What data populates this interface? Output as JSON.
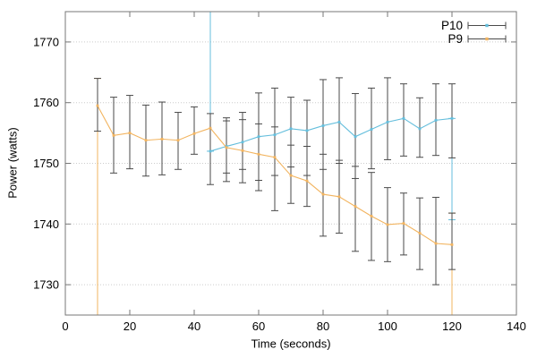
{
  "chart_data": {
    "type": "line",
    "title": "",
    "xlabel": "Time (seconds)",
    "ylabel": "Power (watts)",
    "xlim": [
      0,
      140
    ],
    "ylim": [
      1725,
      1775
    ],
    "xticks": [
      0,
      20,
      40,
      60,
      80,
      100,
      120,
      140
    ],
    "yticks": [
      1730,
      1740,
      1750,
      1760,
      1770
    ],
    "grid": "horizontal dotted gridlines at y ticks",
    "legend_position": "top-right inside, no box",
    "colors": {
      "p10": "#64bedc",
      "p9": "#f2b45f",
      "error_bar": "#4a4a4a",
      "axis": "#777777",
      "grid": "#cccccc",
      "text": "#000000"
    },
    "series": [
      {
        "name": "P10",
        "color_key": "p10",
        "x": [
          45,
          50,
          55,
          60,
          65,
          70,
          75,
          80,
          85,
          90,
          95,
          100,
          105,
          110,
          115,
          120
        ],
        "y": [
          1752.0,
          1752.8,
          1753.5,
          1754.4,
          1754.7,
          1755.7,
          1755.4,
          1756.2,
          1756.8,
          1754.4,
          1755.6,
          1756.8,
          1757.4,
          1755.7,
          1757.1,
          1757.4
        ],
        "err_lo": [
          null,
          1748.4,
          1749.0,
          1747.2,
          1748.0,
          1749.4,
          1748.0,
          1749.0,
          1750.0,
          1747.5,
          1749.1,
          1750.6,
          1751.2,
          1751.0,
          1751.3,
          1750.9
        ],
        "err_hi": [
          null,
          1757.5,
          1758.4,
          1761.6,
          1762.4,
          1760.9,
          1760.4,
          1763.8,
          1764.1,
          1761.5,
          1762.4,
          1764.1,
          1763.1,
          1760.8,
          1763.1,
          1763.1
        ]
      },
      {
        "name": "P9",
        "color_key": "p9",
        "x": [
          10,
          15,
          20,
          25,
          30,
          35,
          40,
          45,
          50,
          55,
          60,
          65,
          70,
          75,
          80,
          85,
          90,
          95,
          100,
          105,
          110,
          115,
          120
        ],
        "y": [
          1759.5,
          1754.6,
          1755.0,
          1753.8,
          1754.0,
          1753.8,
          1754.9,
          1755.8,
          1752.6,
          1752.1,
          1751.5,
          1751.0,
          1748.0,
          1747.1,
          1744.9,
          1744.5,
          1742.9,
          1741.3,
          1739.9,
          1740.1,
          1738.5,
          1736.8,
          1736.6
        ],
        "err_lo": [
          1755.3,
          1748.4,
          1749.1,
          1747.9,
          1748.1,
          1749.0,
          1751.5,
          1746.5,
          1747.0,
          1746.8,
          1745.5,
          1742.2,
          1743.4,
          1742.9,
          1738.0,
          1738.5,
          1735.5,
          1734.0,
          1733.8,
          1734.9,
          1732.5,
          1730.0,
          1732.5
        ],
        "err_hi": [
          1764.0,
          1760.9,
          1761.2,
          1759.6,
          1760.1,
          1758.4,
          1759.3,
          1758.2,
          1757.0,
          1757.2,
          1756.5,
          1756.0,
          1753.0,
          1752.8,
          1751.5,
          1750.5,
          1749.5,
          1748.5,
          1746.0,
          1745.1,
          1744.3,
          1744.4,
          1741.8
        ]
      }
    ],
    "clipped_colored_bars": [
      {
        "series": "P10",
        "x": 45,
        "lo": 1752.0,
        "hi": 1782.0
      },
      {
        "series": "P10",
        "x": 120,
        "lo": 1740.7,
        "hi": 1757.4
      },
      {
        "series": "P9",
        "x": 10,
        "lo": 1718.0,
        "hi": 1764.0
      },
      {
        "series": "P9",
        "x": 120,
        "lo": 1718.0,
        "hi": 1741.8
      }
    ]
  }
}
